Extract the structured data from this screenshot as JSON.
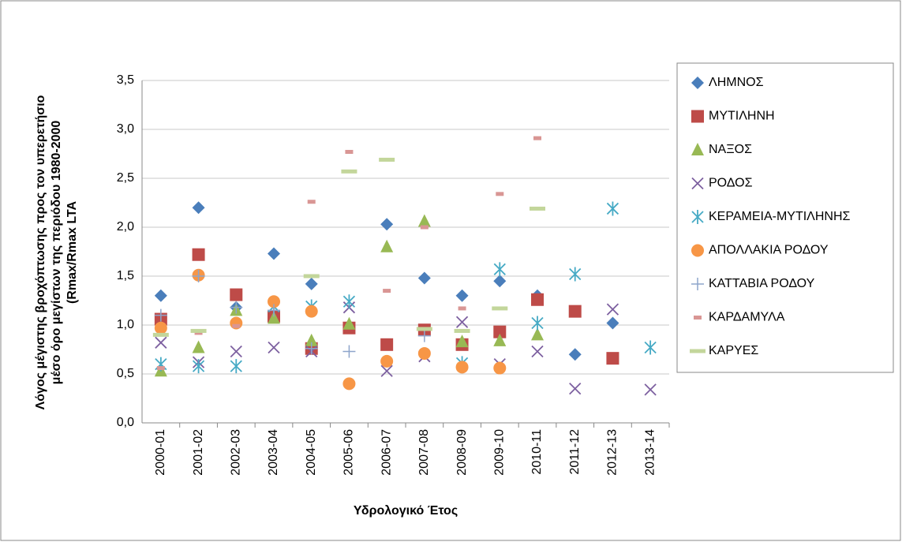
{
  "chart_data": {
    "type": "scatter",
    "y_label": [
      "Λόγος μέγιστης βροχόπτωσης προς τον υπερετήσιο",
      "μέσο όρο μεγίστων της περιόδου 1980-2000",
      "(Rmax/Rmax LTA"
    ],
    "x_label": "Υδρολογικό Έτος",
    "categories": [
      "2000-01",
      "2001-02",
      "2002-03",
      "2003-04",
      "2004-05",
      "2005-06",
      "2006-07",
      "2007-08",
      "2008-09",
      "2009-10",
      "2010-11",
      "2011-12",
      "2012-13",
      "2013-14"
    ],
    "ylim": [
      0,
      3.5
    ],
    "yticks": [
      {
        "value": 0,
        "label": "0,0"
      },
      {
        "value": 0.5,
        "label": "0,5"
      },
      {
        "value": 1,
        "label": "1,0"
      },
      {
        "value": 1.5,
        "label": "1,5"
      },
      {
        "value": 2,
        "label": "2,0"
      },
      {
        "value": 2.5,
        "label": "2,5"
      },
      {
        "value": 3,
        "label": "3,0"
      },
      {
        "value": 3.5,
        "label": "3,5"
      }
    ],
    "grid": true,
    "legend": "right",
    "series": [
      {
        "name": "ΛΗΜΝΟΣ",
        "color": "#4a7ebb",
        "marker": "diamond",
        "values": [
          1.3,
          2.2,
          1.18,
          1.73,
          1.42,
          null,
          2.03,
          1.48,
          1.3,
          1.45,
          1.3,
          0.7,
          1.02,
          null
        ]
      },
      {
        "name": "ΜΥΤΙΛΗΝΗ",
        "color": "#be4b48",
        "marker": "square",
        "values": [
          1.06,
          1.72,
          1.31,
          1.09,
          0.76,
          0.97,
          0.8,
          0.95,
          0.8,
          0.93,
          1.26,
          1.14,
          0.66,
          null
        ]
      },
      {
        "name": "ΝΑΞΟΣ",
        "color": "#98b954",
        "marker": "triangle",
        "values": [
          0.53,
          0.77,
          1.15,
          1.07,
          0.84,
          1.01,
          1.8,
          2.06,
          0.83,
          0.84,
          0.9,
          null,
          null,
          null
        ]
      },
      {
        "name": "ΡΟΔΟΣ",
        "color": "#7d60a0",
        "marker": "x",
        "values": [
          0.82,
          0.62,
          0.73,
          0.77,
          0.73,
          1.18,
          0.53,
          0.68,
          1.03,
          0.6,
          0.73,
          0.35,
          1.16,
          0.34
        ]
      },
      {
        "name": "ΚΕΡΑΜΕΙΑ-ΜΥΤΙΛΗΝΗΣ",
        "color": "#46aac5",
        "marker": "star",
        "values": [
          0.6,
          0.58,
          0.58,
          1.19,
          1.19,
          1.24,
          null,
          null,
          0.61,
          1.57,
          1.02,
          1.52,
          2.19,
          0.77
        ]
      },
      {
        "name": "ΑΠΟΛΛΑΚΙΑ ΡΟΔΟΥ",
        "color": "#f79646",
        "marker": "circle",
        "values": [
          0.97,
          1.51,
          1.02,
          1.24,
          1.14,
          0.4,
          0.63,
          0.71,
          0.57,
          0.56,
          null,
          null,
          null,
          null
        ]
      },
      {
        "name": "ΚΑΤΤΑΒΙΑ ΡΟΔΟΥ",
        "color": "#8ea5cb",
        "marker": "plus",
        "values": [
          1.1,
          1.5,
          1.18,
          1.15,
          0.76,
          0.73,
          null,
          0.89,
          null,
          null,
          null,
          null,
          null,
          null
        ]
      },
      {
        "name": "ΚΑΡΔΑΜΥΛΑ",
        "color": "#d99694",
        "marker": "dash",
        "values": [
          0.56,
          0.92,
          0.99,
          null,
          2.26,
          2.77,
          1.35,
          2.0,
          1.17,
          2.34,
          2.91,
          null,
          null,
          null
        ]
      },
      {
        "name": "ΚΑΡΥΕΣ",
        "color": "#c3d69b",
        "marker": "longdash",
        "values": [
          0.9,
          0.94,
          null,
          null,
          1.5,
          2.57,
          2.69,
          0.96,
          0.94,
          1.17,
          2.19,
          null,
          null,
          null
        ]
      }
    ]
  }
}
